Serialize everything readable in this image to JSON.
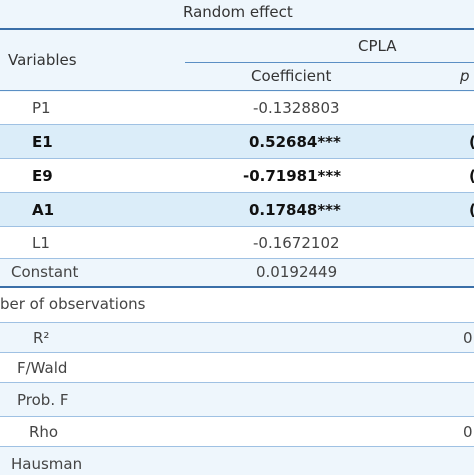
{
  "header": {
    "model_title": "Random effect",
    "variables_label": "Variables",
    "group_label": "CPLA",
    "coefficient_label": "Coefficient",
    "p_label": "p"
  },
  "rows": [
    {
      "variable": "P1",
      "coefficient": "-0.1328803",
      "p": "",
      "bold": false
    },
    {
      "variable": "E1",
      "coefficient": "0.52684***",
      "p": "(",
      "bold": true
    },
    {
      "variable": "E9",
      "coefficient": "-0.71981***",
      "p": "(",
      "bold": true
    },
    {
      "variable": "A1",
      "coefficient": "0.17848***",
      "p": "(",
      "bold": true
    },
    {
      "variable": "L1",
      "coefficient": "-0.1672102",
      "p": "",
      "bold": false
    },
    {
      "variable": "Constant",
      "coefficient": "0.0192449",
      "p": "",
      "bold": false
    }
  ],
  "stats_header": "ber of observations",
  "stats": [
    {
      "label": "R²",
      "value": "0"
    },
    {
      "label": "F/Wald",
      "value": ""
    },
    {
      "label": "Prob. F",
      "value": ""
    },
    {
      "label": "Rho",
      "value": "0"
    },
    {
      "label": "Hausman",
      "value": ""
    }
  ]
}
